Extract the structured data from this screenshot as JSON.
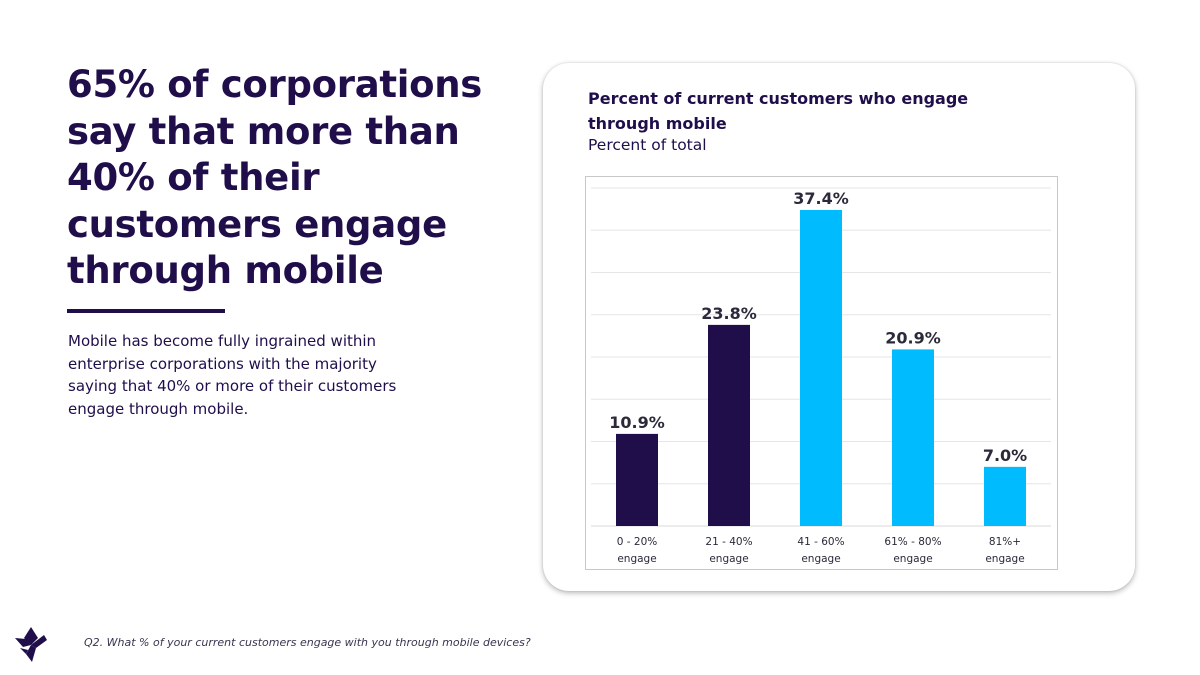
{
  "headline": "65% of corporations say that more than 40% of their customers engage through mobile",
  "body": "Mobile has become fully ingrained within enterprise corporations with the majority saying that 40% or more of their customers engage through mobile.",
  "footnote": "Q2. What % of your current customers engage with you through mobile devices?",
  "logo_icon": "star-logo-icon",
  "colors": {
    "dark": "#200e4b",
    "accent": "#00bcff",
    "grid": "#e6e6e6"
  },
  "chart_data": {
    "type": "bar",
    "title": "Percent of current customers who engage through mobile",
    "subtitle": "Percent of total",
    "xlabel": "",
    "ylabel": "",
    "categories": [
      [
        "0 - 20%",
        "engage"
      ],
      [
        "21 - 40%",
        "engage"
      ],
      [
        "41 - 60%",
        "engage"
      ],
      [
        "61% - 80%",
        "engage"
      ],
      [
        "81%+",
        "engage"
      ]
    ],
    "values": [
      10.9,
      23.8,
      37.4,
      20.9,
      7.0
    ],
    "value_labels": [
      "10.9%",
      "23.8%",
      "37.4%",
      "20.9%",
      "7.0%"
    ],
    "bar_colors": [
      "#200e4b",
      "#200e4b",
      "#00bcff",
      "#00bcff",
      "#00bcff"
    ],
    "ylim": [
      0,
      40
    ],
    "grid": true,
    "legend": "none"
  }
}
